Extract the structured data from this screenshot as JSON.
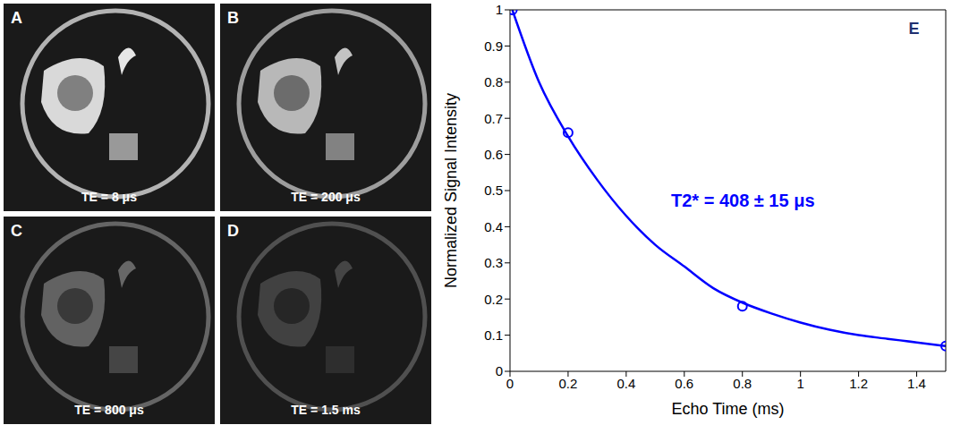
{
  "panels": [
    {
      "letter": "A",
      "label": "TE = 8 μs"
    },
    {
      "letter": "B",
      "label": "TE = 200 μs"
    },
    {
      "letter": "C",
      "label": "TE = 800 μs"
    },
    {
      "letter": "D",
      "label": "TE = 1.5 ms"
    }
  ],
  "chart_data": {
    "type": "line",
    "panel": "E",
    "xlabel": "Echo Time (ms)",
    "ylabel": "Normalized Signal Intensity",
    "annotation": "T2* = 408 ± 15 μs",
    "xlim": [
      0,
      1.5
    ],
    "xticks": [
      0,
      0.2,
      0.4,
      0.6,
      0.8,
      1,
      1.2,
      1.4
    ],
    "ylim": [
      0,
      1
    ],
    "yticks": [
      0,
      0.1,
      0.2,
      0.3,
      0.4,
      0.5,
      0.6,
      0.7,
      0.8,
      0.9,
      1
    ],
    "grid": false,
    "series": [
      {
        "type": "line",
        "color": "#0000ff",
        "marker": "none",
        "line_style": "solid",
        "x": [
          0.008,
          0.1,
          0.2,
          0.3,
          0.4,
          0.5,
          0.6,
          0.7,
          0.8,
          0.9,
          1.0,
          1.1,
          1.2,
          1.3,
          1.4,
          1.5
        ],
        "values": [
          1.0,
          0.8,
          0.65,
          0.53,
          0.43,
          0.35,
          0.29,
          0.23,
          0.19,
          0.16,
          0.135,
          0.115,
          0.1,
          0.09,
          0.08,
          0.07
        ]
      },
      {
        "type": "scatter",
        "color": "#0000ff",
        "marker": "circle",
        "x": [
          0.008,
          0.2,
          0.8,
          1.5
        ],
        "values": [
          1.0,
          0.66,
          0.18,
          0.07
        ]
      }
    ]
  }
}
